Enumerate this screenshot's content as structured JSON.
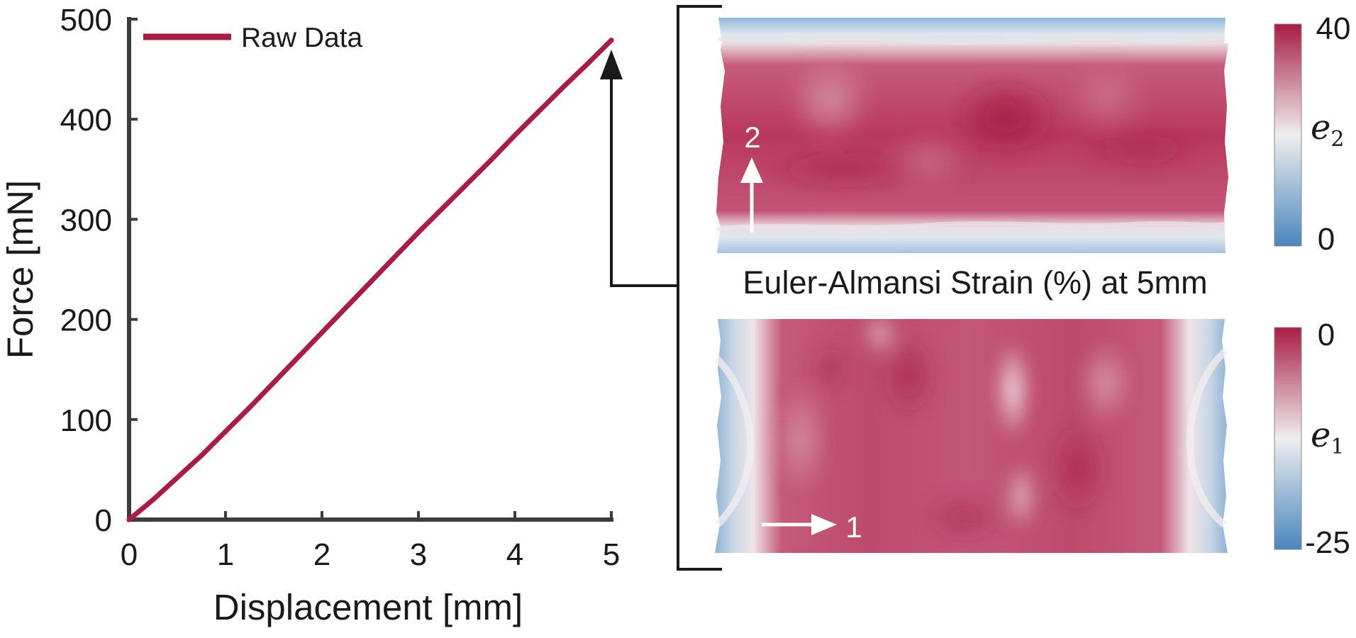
{
  "chart_data": [
    {
      "type": "line",
      "xlabel": "Displacement [mm]",
      "ylabel": "Force [mN]",
      "xlim": [
        0,
        5
      ],
      "ylim": [
        0,
        500
      ],
      "xticks": [
        0,
        1,
        2,
        3,
        4,
        5
      ],
      "yticks": [
        0,
        100,
        200,
        300,
        400,
        500
      ],
      "xtick_labels": [
        "0",
        "1",
        "2",
        "3",
        "4",
        "5"
      ],
      "ytick_labels": [
        "0",
        "100",
        "200",
        "300",
        "400",
        "500"
      ],
      "grid": false,
      "legend_position": "top-left",
      "series": [
        {
          "name": "Raw Data",
          "color": "#a81c45",
          "x": [
            0,
            0.25,
            0.5,
            0.75,
            1.0,
            1.25,
            1.5,
            1.75,
            2.0,
            2.25,
            2.5,
            2.75,
            3.0,
            3.25,
            3.5,
            3.75,
            4.0,
            4.25,
            4.5,
            4.75,
            5.0
          ],
          "y": [
            0,
            20,
            42,
            64,
            88,
            112,
            137,
            162,
            187,
            212,
            237,
            262,
            287,
            311,
            335,
            359,
            384,
            408,
            432,
            455,
            479
          ]
        }
      ],
      "annotation": {
        "type": "arrow",
        "description": "arrow from Displacement 5 pointing to the strain maps",
        "x": 5
      }
    },
    {
      "type": "heatmap",
      "title": "Euler-Almansi Strain (%) at 5mm",
      "panels": [
        {
          "colorbar_label": "e2",
          "colorbar_label_main": "e",
          "colorbar_label_sub": "2",
          "colorbar_min": 0,
          "colorbar_max": 40,
          "colorbar_min_label": "0",
          "colorbar_max_label": "40",
          "direction_label": "2",
          "direction": "vertical"
        },
        {
          "colorbar_label": "e1",
          "colorbar_label_main": "e",
          "colorbar_label_sub": "1",
          "colorbar_min": -25,
          "colorbar_max": 0,
          "colorbar_min_label": "-25",
          "colorbar_max_label": "0",
          "direction_label": "1",
          "direction": "horizontal"
        }
      ],
      "colormap": {
        "low": "#4a86bf",
        "mid": "#eeeeee",
        "high": "#a81c45"
      }
    }
  ]
}
